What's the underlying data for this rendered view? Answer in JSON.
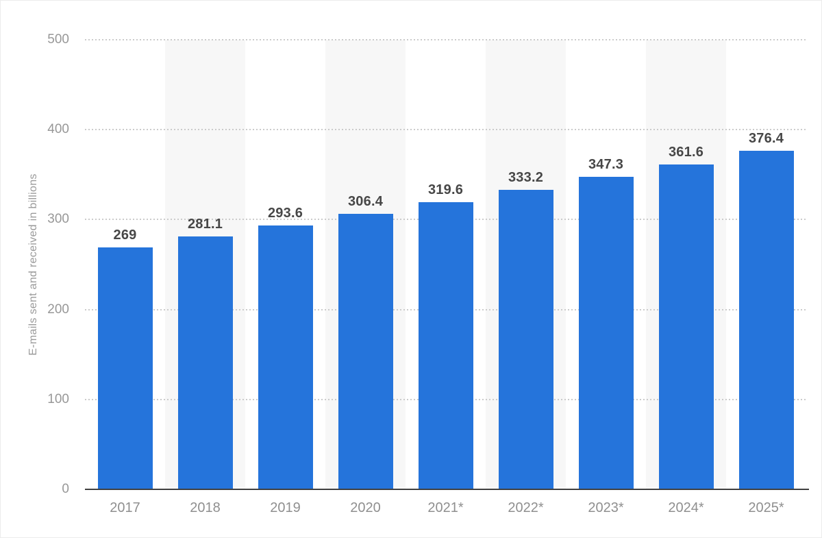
{
  "chart_data": {
    "type": "bar",
    "categories": [
      "2017",
      "2018",
      "2019",
      "2020",
      "2021*",
      "2022*",
      "2023*",
      "2024*",
      "2025*"
    ],
    "values": [
      269,
      281.1,
      293.6,
      306.4,
      319.6,
      333.2,
      347.3,
      361.6,
      376.4
    ],
    "value_labels": [
      "269",
      "281.1",
      "293.6",
      "306.4",
      "319.6",
      "333.2",
      "347.3",
      "361.6",
      "376.4"
    ],
    "title": "",
    "xlabel": "",
    "ylabel": "E-mails sent and received in billions",
    "ylim": [
      0,
      500
    ],
    "yticks": [
      0,
      100,
      200,
      300,
      400,
      500
    ],
    "grid": "horizontal-dotted",
    "legend": "none",
    "colors": {
      "bar": "#2574db",
      "column_band": "#f7f7f7",
      "gridline": "#cbcbcb",
      "baseline": "#404040",
      "value_label": "#474747",
      "axis_tick_label": "#979797",
      "y_title": "#9a9a9a",
      "background": "#ffffff"
    },
    "banded_column_indexes": [
      1,
      3,
      5,
      7
    ]
  }
}
